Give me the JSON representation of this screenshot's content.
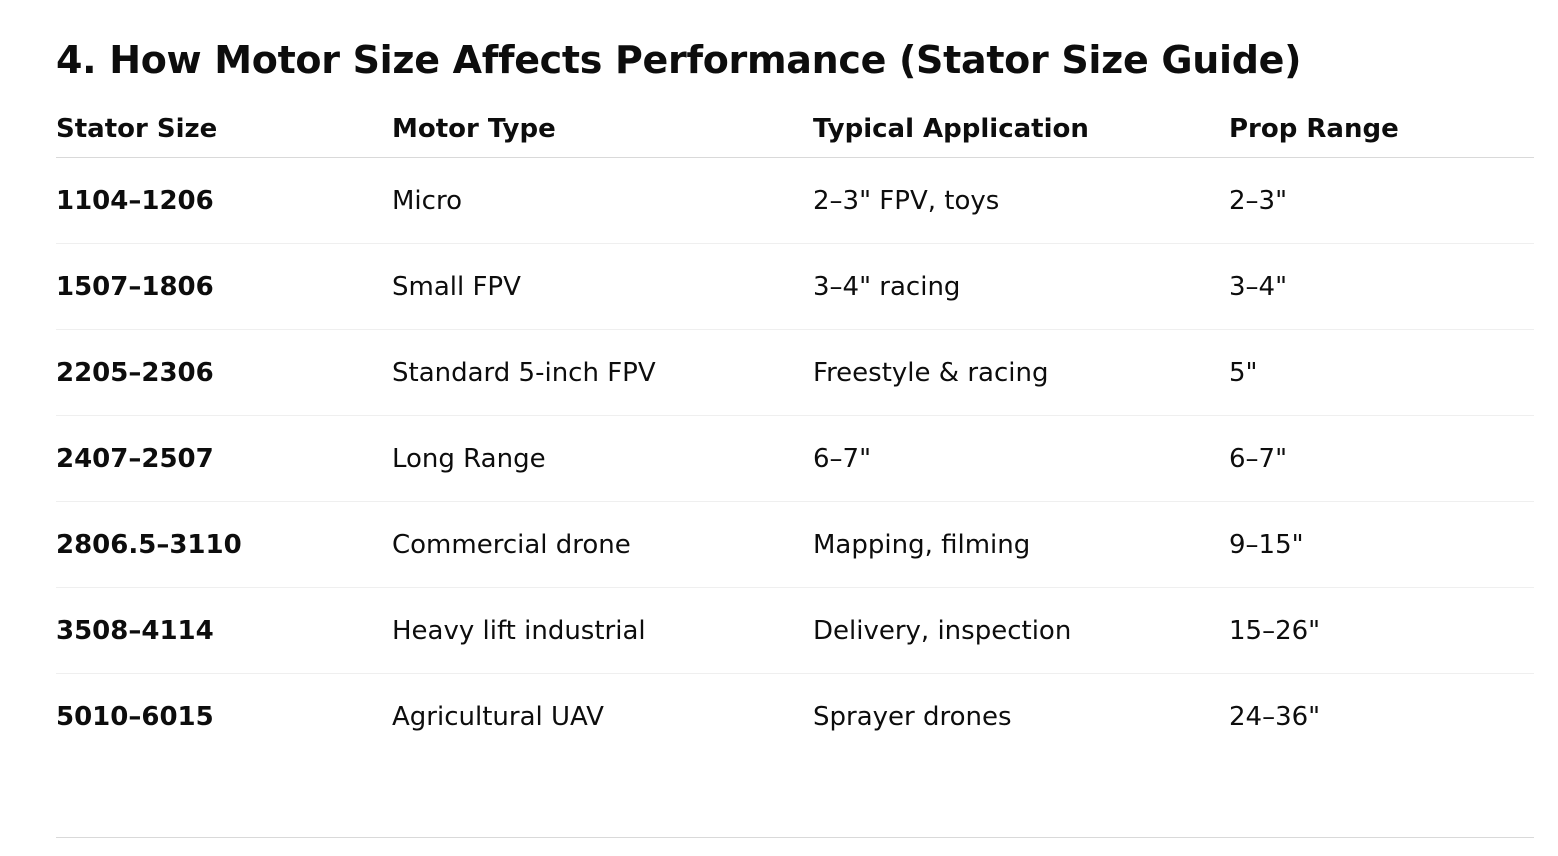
{
  "section": {
    "title": "4. How Motor Size Affects Performance (Stator Size Guide)"
  },
  "table": {
    "headers": [
      "Stator Size",
      "Motor Type",
      "Typical Application",
      "Prop Range"
    ],
    "rows": [
      [
        "1104–1206",
        "Micro",
        "2–3\" FPV, toys",
        "2–3\""
      ],
      [
        "1507–1806",
        "Small FPV",
        "3–4\" racing",
        "3–4\""
      ],
      [
        "2205–2306",
        "Standard 5-inch FPV",
        "Freestyle & racing",
        "5\""
      ],
      [
        "2407–2507",
        "Long Range",
        "6–7\"",
        "6–7\""
      ],
      [
        "2806.5–3110",
        "Commercial drone",
        "Mapping, filming",
        "9–15\""
      ],
      [
        "3508–4114",
        "Heavy lift industrial",
        "Delivery, inspection",
        "15–26\""
      ],
      [
        "5010–6015",
        "Agricultural UAV",
        "Sprayer drones",
        "24–36\""
      ]
    ]
  }
}
